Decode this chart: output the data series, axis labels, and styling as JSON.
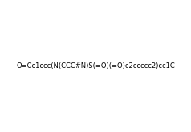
{
  "smiles": "O=Cc1ccc(N(CCC#N)S(=O)(=O)c2ccccc2)cc1C",
  "title": "",
  "img_size": [
    238,
    165
  ],
  "background_color": "#ffffff",
  "line_color": "#1a1a1a",
  "figsize": [
    2.38,
    1.65
  ],
  "dpi": 100
}
